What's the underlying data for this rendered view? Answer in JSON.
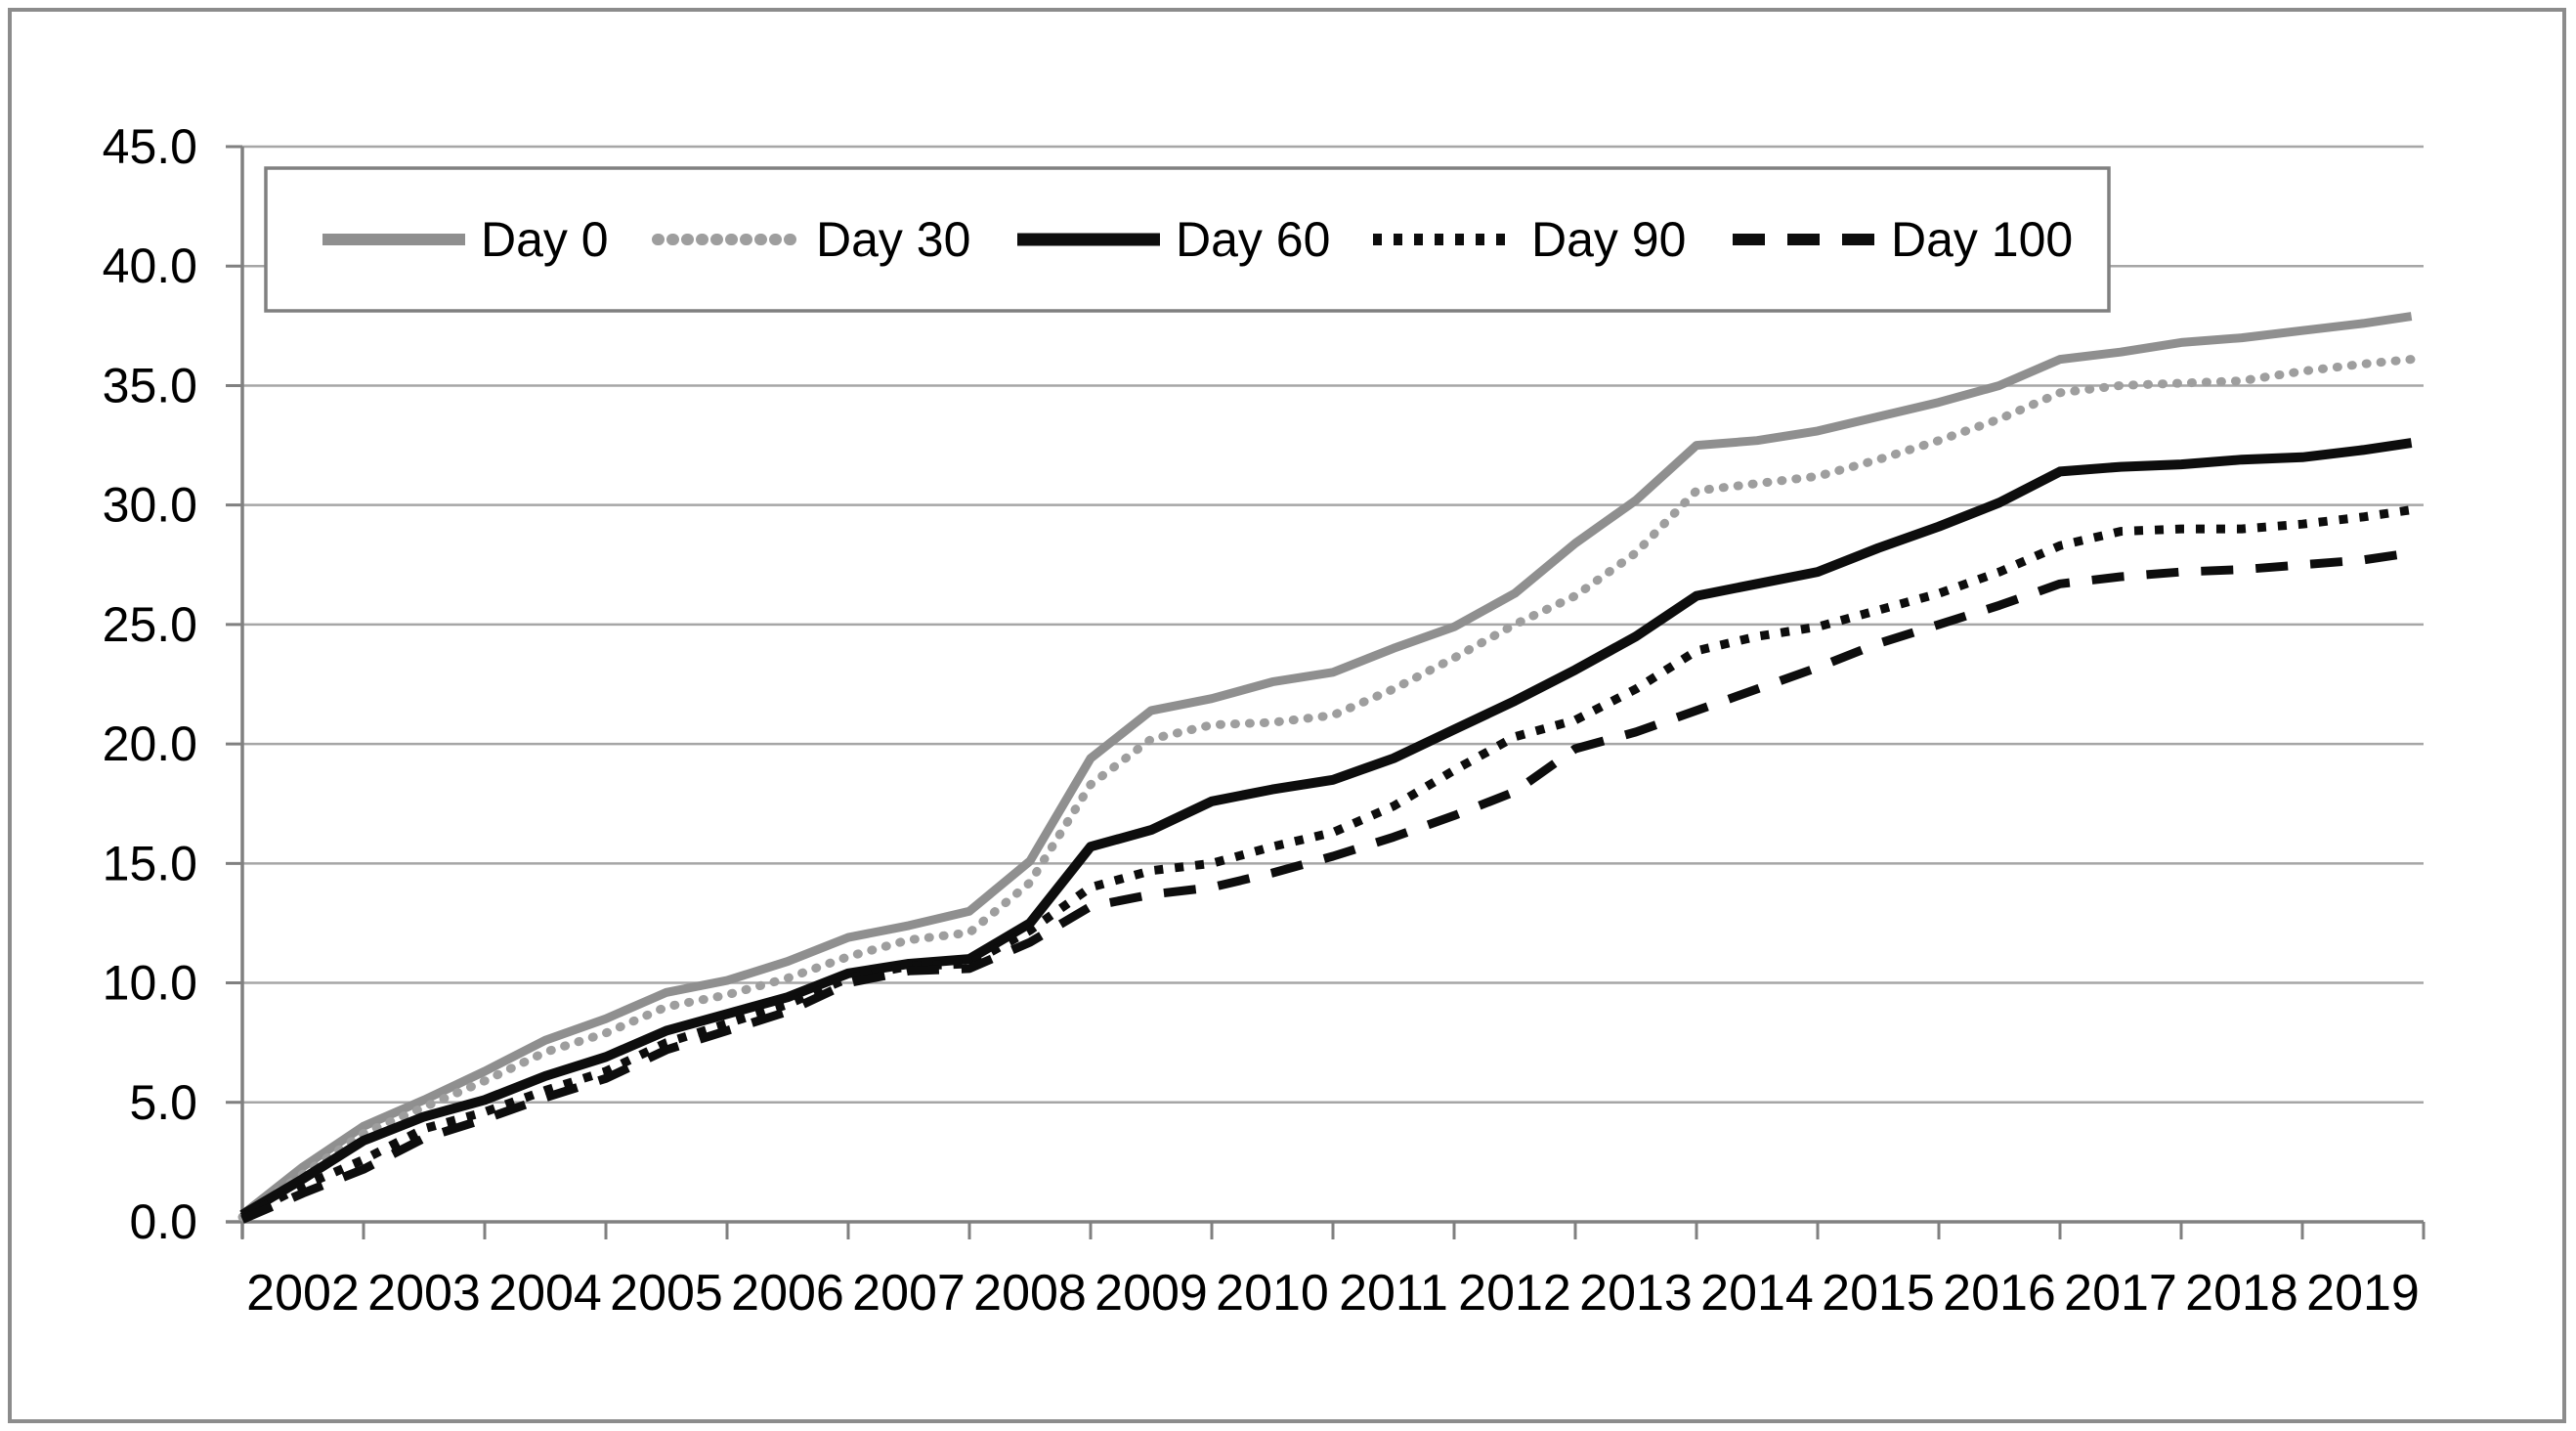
{
  "chart_data": {
    "type": "line",
    "title": "",
    "xlabel": "",
    "ylabel": "",
    "grid": true,
    "legend_position": "top-inside",
    "ylim": [
      0,
      45
    ],
    "ytick_step": 5,
    "xlim": [
      2002,
      2020
    ],
    "y_tick_labels": [
      "0.0",
      "5.0",
      "10.0",
      "15.0",
      "20.0",
      "25.0",
      "30.0",
      "35.0",
      "40.0",
      "45.0"
    ],
    "x_tick_labels": [
      "2002",
      "2003",
      "2004",
      "2005",
      "2006",
      "2007",
      "2008",
      "2009",
      "2010",
      "2011",
      "2012",
      "2013",
      "2014",
      "2015",
      "2016",
      "2017",
      "2018",
      "2019"
    ],
    "axis_color": "#808080",
    "grid_color": "#a6a6a6",
    "background": "#ffffff",
    "border_color": "#8c8c8c",
    "x": [
      2002.0,
      2002.5,
      2003.0,
      2003.5,
      2004.0,
      2004.5,
      2005.0,
      2005.5,
      2006.0,
      2006.5,
      2007.0,
      2007.5,
      2008.0,
      2008.5,
      2009.0,
      2009.5,
      2010.0,
      2010.5,
      2011.0,
      2011.5,
      2012.0,
      2012.5,
      2013.0,
      2013.5,
      2014.0,
      2014.5,
      2015.0,
      2015.5,
      2016.0,
      2016.5,
      2017.0,
      2017.5,
      2018.0,
      2018.5,
      2019.0,
      2019.5,
      2019.9
    ],
    "series": [
      {
        "name": "Day 0",
        "color": "#8f8f8f",
        "line_style": "solid",
        "width": 9,
        "values": [
          0.3,
          2.3,
          4.0,
          5.1,
          6.3,
          7.6,
          8.5,
          9.6,
          10.1,
          10.9,
          11.9,
          12.4,
          13.0,
          15.1,
          19.4,
          21.4,
          21.9,
          22.6,
          23.0,
          24.0,
          24.9,
          26.3,
          28.4,
          30.2,
          32.5,
          32.7,
          33.1,
          33.7,
          34.3,
          35.0,
          36.1,
          36.4,
          36.8,
          37.0,
          37.3,
          37.6,
          37.9
        ]
      },
      {
        "name": "Day 30",
        "color": "#9e9e9e",
        "line_style": "dotted-round",
        "width": 9,
        "values": [
          0.2,
          2.0,
          3.7,
          4.8,
          5.9,
          7.1,
          7.9,
          9.0,
          9.5,
          10.2,
          11.1,
          11.8,
          12.1,
          14.2,
          18.3,
          20.2,
          20.8,
          20.9,
          21.2,
          22.3,
          23.6,
          25.0,
          26.2,
          28.0,
          30.6,
          30.9,
          31.2,
          31.9,
          32.7,
          33.6,
          34.7,
          35.0,
          35.1,
          35.2,
          35.6,
          35.9,
          36.1
        ]
      },
      {
        "name": "Day 60",
        "color": "#0d0d0d",
        "line_style": "solid",
        "width": 10,
        "values": [
          0.3,
          1.8,
          3.4,
          4.4,
          5.1,
          6.1,
          6.9,
          8.0,
          8.7,
          9.4,
          10.4,
          10.8,
          11.0,
          12.5,
          15.7,
          16.4,
          17.6,
          18.1,
          18.5,
          19.4,
          20.6,
          21.8,
          23.1,
          24.5,
          26.2,
          26.7,
          27.2,
          28.2,
          29.1,
          30.1,
          31.4,
          31.6,
          31.7,
          31.9,
          32.0,
          32.3,
          32.6
        ]
      },
      {
        "name": "Day 90",
        "color": "#0d0d0d",
        "line_style": "dotted-square",
        "width": 9,
        "values": [
          0.2,
          1.5,
          2.6,
          3.9,
          4.6,
          5.5,
          6.3,
          7.5,
          8.3,
          9.1,
          10.2,
          10.7,
          10.8,
          12.2,
          14.0,
          14.7,
          15.0,
          15.7,
          16.3,
          17.4,
          18.9,
          20.3,
          21.0,
          22.3,
          23.9,
          24.5,
          24.9,
          25.6,
          26.3,
          27.2,
          28.3,
          28.9,
          29.0,
          29.0,
          29.2,
          29.5,
          29.8
        ]
      },
      {
        "name": "Day 100",
        "color": "#0d0d0d",
        "line_style": "dashed",
        "width": 9,
        "values": [
          0.1,
          1.2,
          2.2,
          3.5,
          4.3,
          5.2,
          6.0,
          7.2,
          8.0,
          8.8,
          10.0,
          10.5,
          10.6,
          11.7,
          13.2,
          13.7,
          14.0,
          14.6,
          15.3,
          16.1,
          17.0,
          18.0,
          19.8,
          20.5,
          21.4,
          22.3,
          23.2,
          24.2,
          25.0,
          25.8,
          26.7,
          27.0,
          27.2,
          27.3,
          27.5,
          27.7,
          28.0
        ]
      }
    ]
  }
}
